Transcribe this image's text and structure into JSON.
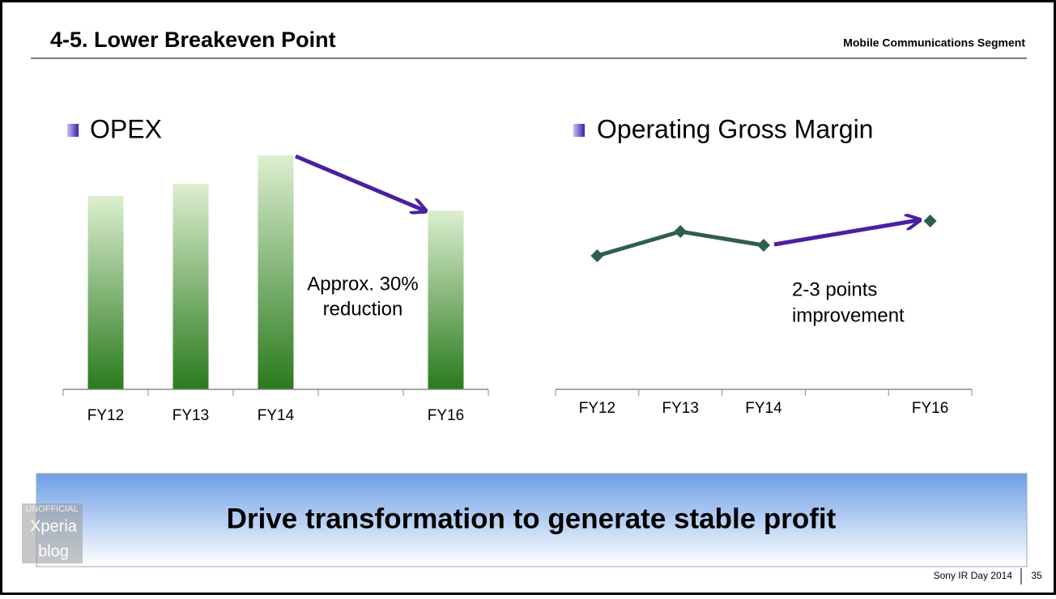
{
  "header": {
    "title": "4-5. Lower Breakeven Point",
    "segment": "Mobile Communications Segment"
  },
  "chart_data": [
    {
      "type": "bar",
      "title": "OPEX",
      "categories": [
        "FY12",
        "FY13",
        "FY14",
        null,
        "FY16"
      ],
      "values": [
        239,
        254,
        289,
        null,
        221
      ],
      "ylim": [
        0,
        300
      ],
      "annotation": [
        "Approx. 30%",
        "reduction"
      ]
    },
    {
      "type": "line",
      "title": "Operating Gross Margin",
      "categories": [
        "FY12",
        "FY13",
        "FY14",
        null,
        "FY16"
      ],
      "values": [
        165,
        195,
        178,
        null,
        208
      ],
      "color": "#2e5e4e",
      "ylim": [
        0,
        300
      ],
      "annotation": [
        "2-3 points",
        "improvement"
      ]
    }
  ],
  "banner": "Drive transformation to generate stable profit",
  "footer": {
    "event": "Sony IR Day 2014",
    "page": "35"
  },
  "watermark": [
    "UNOFFICIAL",
    "Xperia",
    "blog"
  ]
}
